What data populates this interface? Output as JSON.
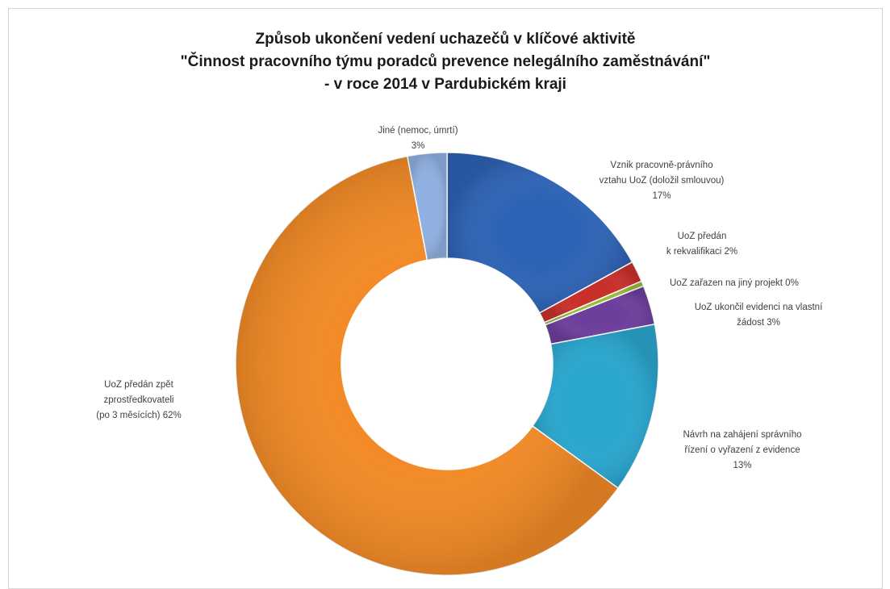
{
  "chart_data": {
    "type": "pie",
    "variant": "doughnut",
    "title": [
      "Způsob ukončení vedení uchazečů v klíčové aktivitě",
      "\"Činnost pracovního týmu poradců prevence nelegálního zaměstnávání\"",
      "- v roce 2014 v Pardubickém kraji"
    ],
    "legend": "none",
    "slices": [
      {
        "label_lines": [
          "Vznik pracovně-právního",
          "vztahu UoZ (doložil smlouvou)",
          "17%"
        ],
        "value": 17.0,
        "color": "#2e63b5"
      },
      {
        "label_lines": [
          "UoZ předán",
          "k rekvalifikaci  2%"
        ],
        "value": 1.6,
        "color": "#c8302b"
      },
      {
        "label_lines": [
          "UoZ zařazen na jiný projekt  0%"
        ],
        "value": 0.4,
        "color": "#9bbb3b"
      },
      {
        "label_lines": [
          "UoZ ukončil evidenci na vlastní",
          "žádost 3%"
        ],
        "value": 3.0,
        "color": "#6d3f9c"
      },
      {
        "label_lines": [
          "Návrh na zahájení správního",
          "řízení o vyřazení z evidence",
          "13%"
        ],
        "value": 13.0,
        "color": "#2aa6cf"
      },
      {
        "label_lines": [
          "UoZ předán zpět",
          "zprostředkovateli",
          "(po 3 měsících)  62%"
        ],
        "value": 62.0,
        "color": "#f28a26"
      },
      {
        "label_lines": [
          "Jiné (nemoc, úmrtí)",
          "3%"
        ],
        "value": 3.0,
        "color": "#8fb0e0"
      }
    ]
  }
}
